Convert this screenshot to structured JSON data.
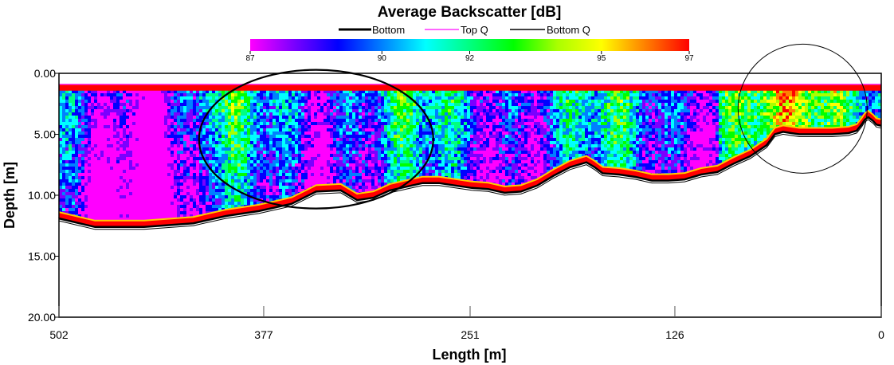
{
  "chart_data": {
    "type": "heatmap",
    "title": "Average Backscatter [dB]",
    "legend": {
      "entries": [
        "Bottom",
        "Top Q",
        "Bottom Q"
      ],
      "colors": [
        "#000000",
        "#ff33ff",
        "#000000"
      ]
    },
    "colorbar": {
      "ticks": [
        "87",
        "90",
        "92",
        "95",
        "97"
      ],
      "range": [
        87,
        97
      ],
      "colors": [
        "#ff00ff",
        "#7a00ff",
        "#0000ff",
        "#0080ff",
        "#00ffff",
        "#00ff80",
        "#00ff00",
        "#aaff00",
        "#ffff00",
        "#ff8000",
        "#ff0000"
      ]
    },
    "xlabel": "Length [m]",
    "ylabel": "Depth [m]",
    "x_ticks": [
      "502",
      "377",
      "251",
      "126",
      "0"
    ],
    "y_ticks": [
      "0.00",
      "5.00",
      "10.00",
      "15.00",
      "20.00"
    ],
    "xlim": [
      502,
      0
    ],
    "ylim": [
      0,
      20
    ],
    "x": [
      502,
      480,
      450,
      420,
      400,
      380,
      360,
      345,
      330,
      320,
      310,
      300,
      290,
      280,
      270,
      260,
      250,
      240,
      230,
      220,
      210,
      200,
      190,
      180,
      175,
      170,
      160,
      150,
      140,
      130,
      120,
      110,
      100,
      90,
      80,
      70,
      65,
      60,
      55,
      50,
      40,
      30,
      20,
      15,
      12,
      10,
      8,
      5,
      3,
      0
    ],
    "bottom_depth": [
      11.9,
      12.6,
      12.6,
      12.3,
      11.7,
      11.3,
      10.7,
      9.7,
      9.6,
      10.4,
      10.2,
      9.6,
      9.3,
      9.0,
      9.0,
      9.2,
      9.4,
      9.5,
      9.8,
      9.7,
      9.2,
      8.4,
      7.7,
      7.3,
      7.7,
      8.2,
      8.3,
      8.5,
      8.8,
      8.8,
      8.7,
      8.3,
      8.1,
      7.4,
      6.8,
      5.9,
      5.0,
      4.8,
      4.9,
      5.0,
      5.0,
      5.0,
      4.9,
      4.7,
      4.2,
      3.8,
      3.6,
      3.9,
      4.2,
      4.3
    ],
    "top_q_depth": 0.9,
    "annotations": [
      {
        "shape": "ellipse",
        "x_center": 345,
        "depth_center": 5.4
      },
      {
        "shape": "circle",
        "x_center": 48,
        "depth_center": 2.9
      }
    ]
  }
}
